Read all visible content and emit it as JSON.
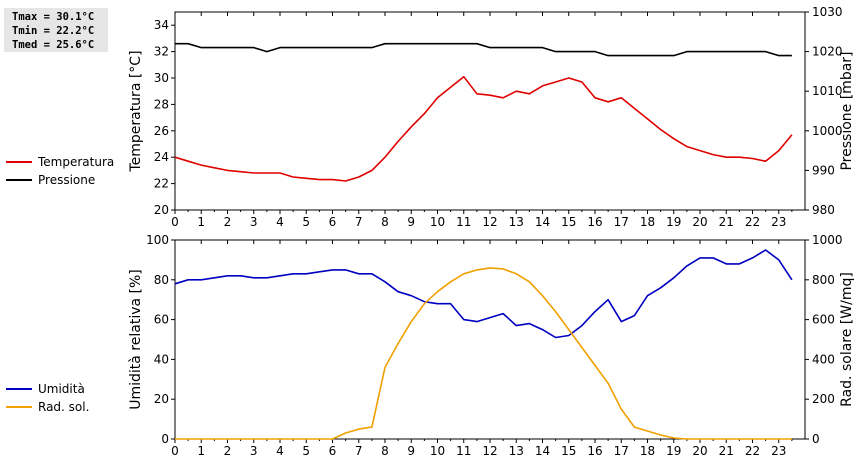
{
  "stats": {
    "tmax": "Tmax = 30.1°C",
    "tmin": "Tmin = 22.2°C",
    "tmed": "Tmed = 25.6°C"
  },
  "chart_data": [
    {
      "type": "line",
      "ylabel": "Temperatura [°C]",
      "y2label": "Pressione [mbar]",
      "xlim": [
        0,
        24
      ],
      "x_ticks": [
        0,
        1,
        2,
        3,
        4,
        5,
        6,
        7,
        8,
        9,
        10,
        11,
        12,
        13,
        14,
        15,
        16,
        17,
        18,
        19,
        20,
        21,
        22,
        23
      ],
      "ylim": [
        20,
        35
      ],
      "y_ticks": [
        20,
        22,
        24,
        26,
        28,
        30,
        32,
        34
      ],
      "y2lim": [
        980,
        1030
      ],
      "y2_ticks": [
        980,
        990,
        1000,
        1010,
        1020,
        1030
      ],
      "legend": "left",
      "series": [
        {
          "name": "Temperatura",
          "color": "#e00000",
          "axis": "left",
          "x": [
            0,
            0.5,
            1,
            1.5,
            2,
            2.5,
            3,
            3.5,
            4,
            4.5,
            5,
            5.5,
            6,
            6.5,
            7,
            7.5,
            8,
            8.5,
            9,
            9.5,
            10,
            10.5,
            11,
            11.5,
            12,
            12.5,
            13,
            13.5,
            14,
            14.5,
            15,
            15.5,
            16,
            16.5,
            17,
            17.5,
            18,
            18.5,
            19,
            19.5,
            20,
            20.5,
            21,
            21.5,
            22,
            22.5,
            23,
            23.5
          ],
          "values": [
            24.0,
            23.7,
            23.4,
            23.2,
            23.0,
            22.9,
            22.8,
            22.8,
            22.8,
            22.5,
            22.4,
            22.3,
            22.3,
            22.2,
            22.5,
            23.0,
            24.0,
            25.2,
            26.3,
            27.3,
            28.5,
            29.3,
            30.1,
            28.8,
            28.7,
            28.5,
            29.0,
            28.8,
            29.4,
            29.7,
            30.0,
            29.7,
            28.5,
            28.2,
            28.5,
            27.7,
            26.9,
            26.1,
            25.4,
            24.8,
            24.5,
            24.2,
            24.0,
            24.0,
            23.9,
            23.7,
            24.5,
            25.7
          ]
        },
        {
          "name": "Pressione",
          "color": "#000000",
          "axis": "right",
          "x": [
            0,
            0.5,
            1,
            1.5,
            2,
            2.5,
            3,
            3.5,
            4,
            4.5,
            5,
            5.5,
            6,
            6.5,
            7,
            7.5,
            8,
            8.5,
            9,
            9.5,
            10,
            10.5,
            11,
            11.5,
            12,
            12.5,
            13,
            13.5,
            14,
            14.5,
            15,
            15.5,
            16,
            16.5,
            17,
            17.5,
            18,
            18.5,
            19,
            19.5,
            20,
            20.5,
            21,
            21.5,
            22,
            22.5,
            23,
            23.5
          ],
          "values": [
            1022,
            1022,
            1021,
            1021,
            1021,
            1021,
            1021,
            1020,
            1021,
            1021,
            1021,
            1021,
            1021,
            1021,
            1021,
            1021,
            1022,
            1022,
            1022,
            1022,
            1022,
            1022,
            1022,
            1022,
            1021,
            1021,
            1021,
            1021,
            1021,
            1020,
            1020,
            1020,
            1020,
            1019,
            1019,
            1019,
            1019,
            1019,
            1019,
            1020,
            1020,
            1020,
            1020,
            1020,
            1020,
            1020,
            1019,
            1019
          ]
        }
      ]
    },
    {
      "type": "line",
      "ylabel": "Umidità relativa [%]",
      "y2label": "Rad. solare [W/mq]",
      "xlim": [
        0,
        24
      ],
      "x_ticks": [
        0,
        1,
        2,
        3,
        4,
        5,
        6,
        7,
        8,
        9,
        10,
        11,
        12,
        13,
        14,
        15,
        16,
        17,
        18,
        19,
        20,
        21,
        22,
        23
      ],
      "ylim": [
        0,
        100
      ],
      "y_ticks": [
        0,
        20,
        40,
        60,
        80,
        100
      ],
      "y2lim": [
        0,
        1000
      ],
      "y2_ticks": [
        0,
        200,
        400,
        600,
        800,
        1000
      ],
      "legend": "left",
      "series": [
        {
          "name": "Umidità",
          "color": "#0000c0",
          "axis": "left",
          "x": [
            0,
            0.5,
            1,
            1.5,
            2,
            2.5,
            3,
            3.5,
            4,
            4.5,
            5,
            5.5,
            6,
            6.5,
            7,
            7.5,
            8,
            8.5,
            9,
            9.5,
            10,
            10.5,
            11,
            11.5,
            12,
            12.5,
            13,
            13.5,
            14,
            14.5,
            15,
            15.5,
            16,
            16.5,
            17,
            17.5,
            18,
            18.5,
            19,
            19.5,
            20,
            20.5,
            21,
            21.5,
            22,
            22.5,
            23,
            23.5
          ],
          "values": [
            78,
            80,
            80,
            81,
            82,
            82,
            81,
            81,
            82,
            83,
            83,
            84,
            85,
            85,
            83,
            83,
            79,
            74,
            72,
            69,
            68,
            68,
            60,
            59,
            61,
            63,
            57,
            58,
            55,
            51,
            52,
            57,
            64,
            70,
            59,
            62,
            72,
            76,
            81,
            87,
            91,
            91,
            88,
            88,
            91,
            95,
            90,
            80
          ]
        },
        {
          "name": "Rad. sol.",
          "color": "#f0a000",
          "axis": "right",
          "x": [
            0,
            0.5,
            1,
            1.5,
            2,
            2.5,
            3,
            3.5,
            4,
            4.5,
            5,
            5.5,
            6,
            6.5,
            7,
            7.5,
            8,
            8.5,
            9,
            9.5,
            10,
            10.5,
            11,
            11.5,
            12,
            12.5,
            13,
            13.5,
            14,
            14.5,
            15,
            15.5,
            16,
            16.5,
            17,
            17.5,
            18,
            18.5,
            19,
            19.5,
            20,
            20.5,
            21,
            21.5,
            22,
            22.5,
            23,
            23.5
          ],
          "values": [
            0,
            0,
            0,
            0,
            0,
            0,
            0,
            0,
            0,
            0,
            0,
            0,
            0,
            30,
            50,
            60,
            360,
            480,
            590,
            680,
            740,
            790,
            830,
            850,
            860,
            855,
            830,
            790,
            720,
            640,
            550,
            460,
            370,
            280,
            150,
            60,
            40,
            20,
            5,
            0,
            0,
            0,
            0,
            0,
            0,
            0,
            0,
            0
          ]
        }
      ]
    }
  ]
}
